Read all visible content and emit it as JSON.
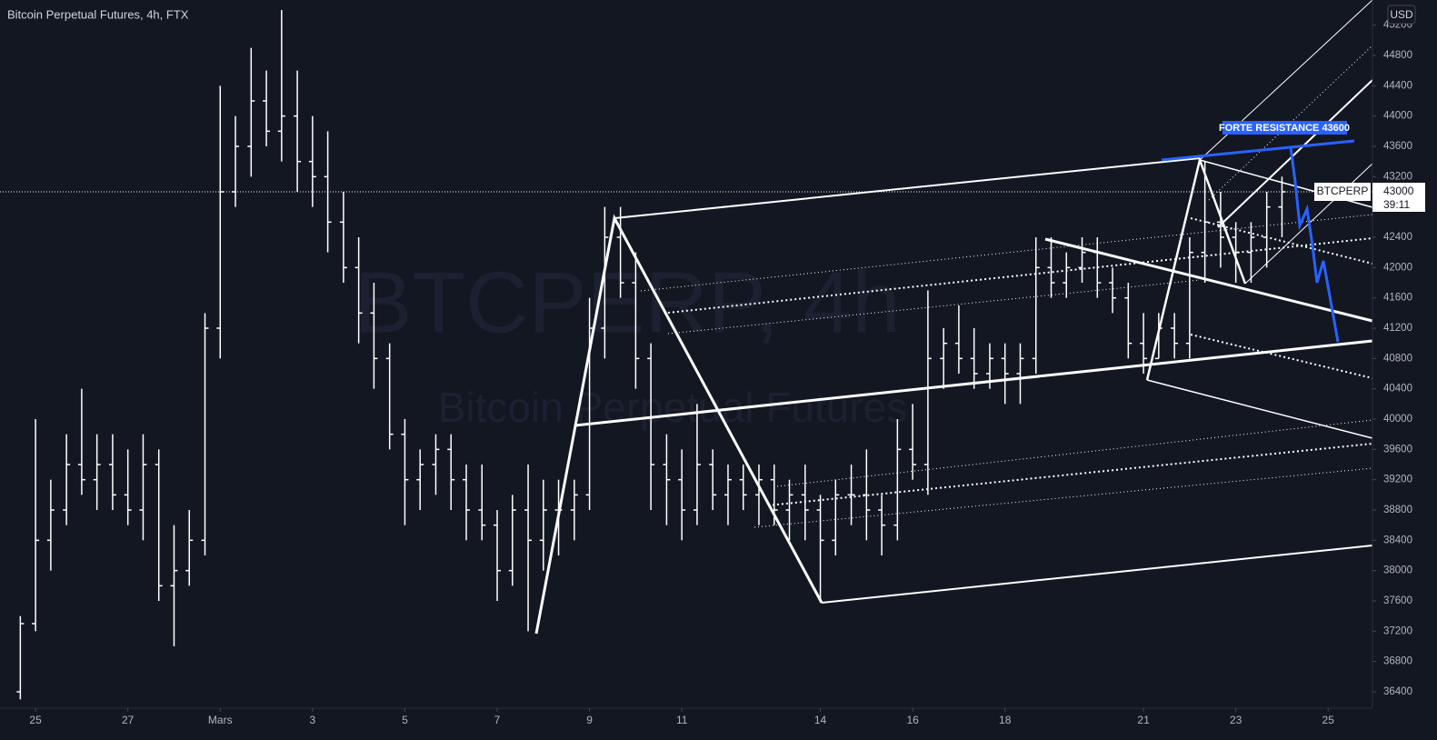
{
  "chart_data": {
    "type": "ohlc",
    "title": "Bitcoin Perpetual Futures, 4h, FTX",
    "watermark": "BTCPERP, 4h",
    "watermark_subtitle": "Bitcoin Perpetual Futures",
    "currency": "USD",
    "symbol": "BTCPERP",
    "last_price": 43000,
    "countdown": "39:11",
    "annotation": "FORTE RESISTANCE 43600",
    "color": "#ffffff",
    "x": [
      -0.33,
      0,
      0.33,
      0.67,
      1,
      1.33,
      1.67,
      2,
      2.33,
      2.67,
      3,
      3.33,
      3.67,
      4,
      4.33,
      4.67,
      5,
      5.33,
      5.67,
      6,
      6.33,
      6.67,
      7,
      7.33,
      7.67,
      8,
      8.33,
      8.67,
      9,
      9.33,
      9.67,
      10,
      10.33,
      10.67,
      11,
      11.33,
      11.67,
      12,
      12.33,
      12.67,
      13,
      13.33,
      13.67,
      14,
      14.33,
      14.67,
      15,
      15.33,
      15.67,
      16,
      16.33,
      16.67,
      17,
      17.33,
      17.67,
      18,
      18.33,
      18.67,
      19,
      19.33,
      19.67,
      20,
      20.33,
      20.67,
      21,
      21.33,
      21.67,
      22,
      22.33,
      22.67,
      23,
      23.33,
      23.67,
      24,
      24.33,
      24.67,
      25,
      25.33,
      25.67,
      26,
      26.33,
      26.67,
      27
    ],
    "open": [
      36400,
      37300,
      38400,
      38800,
      39400,
      39200,
      39400,
      39000,
      38800,
      39400,
      37800,
      38000,
      38400,
      41200,
      43000,
      43600,
      44200,
      43800,
      44000,
      43400,
      43200,
      42600,
      42000,
      41400,
      40800,
      39800,
      39200,
      39400,
      39600,
      39200,
      38800,
      38600,
      38000,
      38800,
      38400,
      38800,
      38800,
      39000,
      41200,
      42400,
      41800,
      40800,
      39400,
      39200,
      38800,
      39400,
      39000,
      39200,
      39000,
      39200,
      38800,
      39000,
      38800,
      38400,
      39000,
      39000,
      38800,
      38600,
      39600,
      39400,
      40800,
      41000,
      40800,
      40600,
      40800,
      40600,
      40800,
      42000,
      41800,
      42000,
      42200,
      41800,
      41600,
      41000,
      40800,
      41200,
      41000,
      42200,
      42600,
      42400,
      42200,
      42400,
      42800
    ],
    "high": [
      37400,
      40000,
      39200,
      39800,
      40400,
      39800,
      39800,
      39600,
      39800,
      39600,
      38600,
      38800,
      41400,
      44400,
      44000,
      44900,
      44600,
      45400,
      44600,
      44000,
      43800,
      43000,
      42400,
      41800,
      41000,
      40000,
      39600,
      39800,
      39800,
      39400,
      39400,
      38800,
      39000,
      39400,
      39200,
      39200,
      39200,
      41600,
      42800,
      42800,
      42200,
      41000,
      39800,
      39600,
      40200,
      39600,
      39400,
      39400,
      39400,
      39400,
      39200,
      39400,
      39000,
      39200,
      39400,
      39600,
      39000,
      40000,
      40200,
      41700,
      41200,
      41500,
      41200,
      41000,
      41000,
      41000,
      42400,
      42400,
      42200,
      42400,
      42400,
      42000,
      41800,
      41400,
      41400,
      41400,
      42400,
      43400,
      43000,
      42600,
      42600,
      43000,
      43200
    ],
    "low": [
      36300,
      37200,
      38000,
      38600,
      39000,
      38800,
      38800,
      38600,
      38400,
      37600,
      37000,
      37800,
      38200,
      40800,
      42800,
      43200,
      43600,
      43400,
      43000,
      42800,
      42200,
      41800,
      41000,
      40400,
      39600,
      38600,
      38800,
      39000,
      38800,
      38400,
      38400,
      37600,
      37800,
      37200,
      38000,
      38200,
      38400,
      38800,
      40800,
      41600,
      40400,
      38800,
      38600,
      38400,
      38600,
      38800,
      38600,
      38800,
      38600,
      38600,
      38400,
      38400,
      37600,
      38200,
      38600,
      38400,
      38200,
      38400,
      39200,
      39000,
      40400,
      40600,
      40400,
      40400,
      40200,
      40200,
      40600,
      41600,
      41600,
      41800,
      41600,
      41400,
      40800,
      40600,
      40800,
      40800,
      40800,
      41800,
      42000,
      41800,
      41800,
      42000,
      42400
    ],
    "close": [
      37300,
      38400,
      38800,
      39400,
      39200,
      39400,
      39000,
      38800,
      39400,
      37800,
      38000,
      38400,
      41200,
      43000,
      43600,
      44200,
      43800,
      44000,
      43400,
      43200,
      42600,
      42000,
      41400,
      40800,
      39800,
      39200,
      39400,
      39600,
      39200,
      38800,
      38600,
      38000,
      38800,
      38400,
      38800,
      38800,
      39000,
      41200,
      42400,
      41800,
      40800,
      39400,
      39200,
      38800,
      39400,
      39000,
      39200,
      39000,
      39200,
      38800,
      39000,
      38800,
      38400,
      39000,
      39000,
      38800,
      38600,
      39600,
      39400,
      40800,
      41000,
      40800,
      40600,
      40800,
      40600,
      40800,
      42000,
      41800,
      42000,
      42200,
      41800,
      41600,
      41000,
      40800,
      41200,
      41000,
      42200,
      42600,
      42400,
      42200,
      42400,
      42800,
      43000
    ],
    "xlim": [
      -0.77,
      28.96
    ],
    "xticks": [
      {
        "value": 0,
        "label": "25"
      },
      {
        "value": 2,
        "label": "27"
      },
      {
        "value": 4,
        "label": "Mars"
      },
      {
        "value": 6,
        "label": "3"
      },
      {
        "value": 8,
        "label": "5"
      },
      {
        "value": 10,
        "label": "7"
      },
      {
        "value": 12,
        "label": "9"
      },
      {
        "value": 14,
        "label": "11"
      },
      {
        "value": 17,
        "label": "14"
      },
      {
        "value": 19,
        "label": "16"
      },
      {
        "value": 21,
        "label": "18"
      },
      {
        "value": 24,
        "label": "21"
      },
      {
        "value": 26,
        "label": "23"
      },
      {
        "value": 28,
        "label": "25"
      }
    ],
    "ylim": [
      36184,
      45532
    ],
    "yticks": [
      36400,
      36800,
      37200,
      37600,
      38000,
      38400,
      38800,
      39200,
      39600,
      40000,
      40400,
      40800,
      41200,
      41600,
      42000,
      42400,
      42800,
      43200,
      43600,
      44000,
      44400,
      44800,
      45200
    ]
  }
}
